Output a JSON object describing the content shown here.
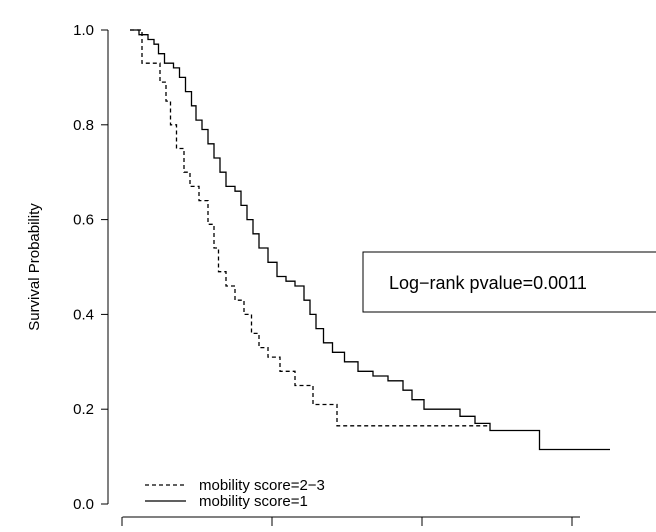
{
  "chart_data": {
    "type": "line",
    "ylabel": "Survival Probability",
    "xlabel": "",
    "ylim": [
      0.0,
      1.0
    ],
    "yticks": [
      "0.0",
      "0.2",
      "0.4",
      "0.6",
      "0.8",
      "1.0"
    ],
    "x_tick_labels_visible": false,
    "grid": false,
    "legend_position": "bottom-left",
    "annotation": "Log−rank pvalue=0.0011",
    "series": [
      {
        "name": "mobility score=1",
        "line_style": "solid",
        "color": "#000000",
        "points": [
          [
            0.0,
            1.0
          ],
          [
            0.06,
            1.0
          ],
          [
            0.06,
            0.99
          ],
          [
            0.12,
            0.99
          ],
          [
            0.12,
            0.98
          ],
          [
            0.16,
            0.98
          ],
          [
            0.16,
            0.97
          ],
          [
            0.19,
            0.97
          ],
          [
            0.19,
            0.95
          ],
          [
            0.23,
            0.95
          ],
          [
            0.23,
            0.93
          ],
          [
            0.29,
            0.93
          ],
          [
            0.29,
            0.92
          ],
          [
            0.33,
            0.92
          ],
          [
            0.33,
            0.9
          ],
          [
            0.37,
            0.9
          ],
          [
            0.37,
            0.87
          ],
          [
            0.41,
            0.87
          ],
          [
            0.41,
            0.84
          ],
          [
            0.44,
            0.84
          ],
          [
            0.44,
            0.81
          ],
          [
            0.48,
            0.81
          ],
          [
            0.48,
            0.79
          ],
          [
            0.52,
            0.79
          ],
          [
            0.52,
            0.76
          ],
          [
            0.56,
            0.76
          ],
          [
            0.56,
            0.73
          ],
          [
            0.6,
            0.73
          ],
          [
            0.6,
            0.7
          ],
          [
            0.64,
            0.7
          ],
          [
            0.64,
            0.67
          ],
          [
            0.7,
            0.67
          ],
          [
            0.7,
            0.66
          ],
          [
            0.74,
            0.66
          ],
          [
            0.74,
            0.63
          ],
          [
            0.78,
            0.63
          ],
          [
            0.78,
            0.6
          ],
          [
            0.82,
            0.6
          ],
          [
            0.82,
            0.57
          ],
          [
            0.86,
            0.57
          ],
          [
            0.86,
            0.54
          ],
          [
            0.92,
            0.54
          ],
          [
            0.92,
            0.51
          ],
          [
            0.98,
            0.51
          ],
          [
            0.98,
            0.48
          ],
          [
            1.04,
            0.48
          ],
          [
            1.04,
            0.47
          ],
          [
            1.1,
            0.47
          ],
          [
            1.1,
            0.46
          ],
          [
            1.16,
            0.46
          ],
          [
            1.16,
            0.43
          ],
          [
            1.2,
            0.43
          ],
          [
            1.2,
            0.4
          ],
          [
            1.24,
            0.4
          ],
          [
            1.24,
            0.37
          ],
          [
            1.29,
            0.37
          ],
          [
            1.29,
            0.34
          ],
          [
            1.35,
            0.34
          ],
          [
            1.35,
            0.32
          ],
          [
            1.43,
            0.32
          ],
          [
            1.43,
            0.3
          ],
          [
            1.52,
            0.3
          ],
          [
            1.52,
            0.28
          ],
          [
            1.62,
            0.28
          ],
          [
            1.62,
            0.27
          ],
          [
            1.72,
            0.27
          ],
          [
            1.72,
            0.26
          ],
          [
            1.82,
            0.26
          ],
          [
            1.82,
            0.24
          ],
          [
            1.88,
            0.24
          ],
          [
            1.88,
            0.22
          ],
          [
            1.96,
            0.22
          ],
          [
            1.96,
            0.2
          ],
          [
            2.2,
            0.2
          ],
          [
            2.2,
            0.185
          ],
          [
            2.3,
            0.185
          ],
          [
            2.3,
            0.17
          ],
          [
            2.4,
            0.17
          ],
          [
            2.4,
            0.155
          ],
          [
            2.73,
            0.155
          ],
          [
            2.73,
            0.115
          ],
          [
            3.2,
            0.115
          ]
        ]
      },
      {
        "name": "mobility score=2−3",
        "line_style": "dashed",
        "color": "#000000",
        "points": [
          [
            0.0,
            1.0
          ],
          [
            0.08,
            1.0
          ],
          [
            0.08,
            0.93
          ],
          [
            0.2,
            0.93
          ],
          [
            0.2,
            0.89
          ],
          [
            0.24,
            0.89
          ],
          [
            0.24,
            0.85
          ],
          [
            0.27,
            0.85
          ],
          [
            0.27,
            0.8
          ],
          [
            0.31,
            0.8
          ],
          [
            0.31,
            0.75
          ],
          [
            0.36,
            0.75
          ],
          [
            0.36,
            0.7
          ],
          [
            0.4,
            0.7
          ],
          [
            0.4,
            0.67
          ],
          [
            0.46,
            0.67
          ],
          [
            0.46,
            0.64
          ],
          [
            0.52,
            0.64
          ],
          [
            0.52,
            0.59
          ],
          [
            0.56,
            0.59
          ],
          [
            0.56,
            0.54
          ],
          [
            0.59,
            0.54
          ],
          [
            0.59,
            0.49
          ],
          [
            0.64,
            0.49
          ],
          [
            0.64,
            0.46
          ],
          [
            0.7,
            0.46
          ],
          [
            0.7,
            0.43
          ],
          [
            0.76,
            0.43
          ],
          [
            0.76,
            0.4
          ],
          [
            0.81,
            0.4
          ],
          [
            0.81,
            0.36
          ],
          [
            0.86,
            0.36
          ],
          [
            0.86,
            0.33
          ],
          [
            0.92,
            0.33
          ],
          [
            0.92,
            0.31
          ],
          [
            1.0,
            0.31
          ],
          [
            1.0,
            0.28
          ],
          [
            1.1,
            0.28
          ],
          [
            1.1,
            0.25
          ],
          [
            1.22,
            0.25
          ],
          [
            1.22,
            0.21
          ],
          [
            1.38,
            0.21
          ],
          [
            1.38,
            0.165
          ],
          [
            2.4,
            0.165
          ]
        ]
      }
    ]
  }
}
